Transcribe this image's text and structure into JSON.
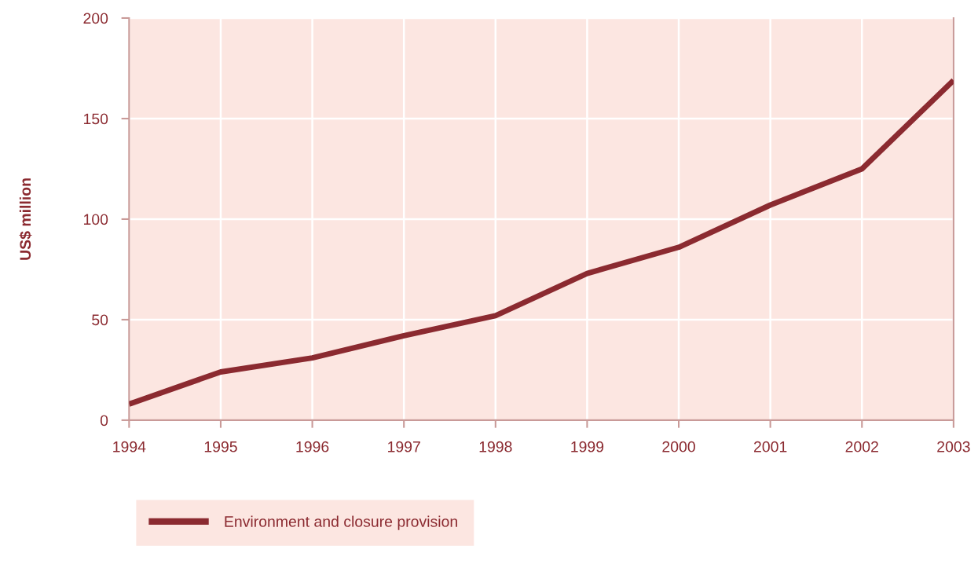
{
  "chart_data": {
    "type": "line",
    "ylabel": "US$ million",
    "x": [
      1994,
      1995,
      1996,
      1997,
      1998,
      1999,
      2000,
      2001,
      2002,
      2003
    ],
    "series": [
      {
        "name": "Environment and closure provision",
        "color": "#8b2a30",
        "values": [
          8,
          24,
          31,
          42,
          52,
          73,
          86,
          107,
          125,
          169
        ]
      }
    ],
    "xlim": [
      1994,
      2003
    ],
    "xticks": [
      1994,
      1995,
      1996,
      1997,
      1998,
      1999,
      2000,
      2001,
      2002,
      2003
    ],
    "ylim": [
      0,
      200
    ],
    "yticks": [
      0,
      50,
      100,
      150,
      200
    ],
    "grid": true,
    "legend": "bottom",
    "marker": "none",
    "line_style": "solid"
  }
}
